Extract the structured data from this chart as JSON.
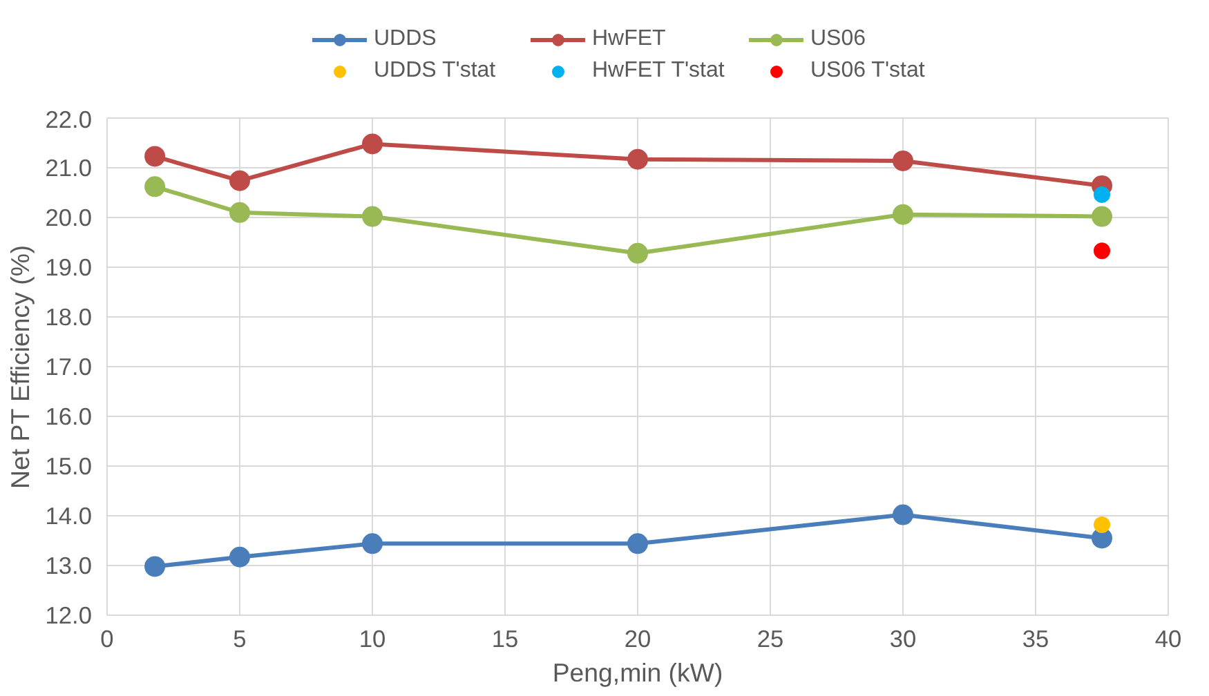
{
  "chart_data": {
    "type": "line",
    "xlabel": "Peng,min (kW)",
    "ylabel": "Net PT Efficiency (%)",
    "x": [
      1.8,
      5,
      10,
      20,
      30,
      37.5
    ],
    "series": [
      {
        "name": "UDDS",
        "color": "#4a7ebb",
        "values": [
          12.98,
          13.17,
          13.44,
          13.44,
          14.02,
          13.55
        ]
      },
      {
        "name": "HwFET",
        "color": "#be4b48",
        "values": [
          21.23,
          20.74,
          21.48,
          21.17,
          21.14,
          20.64
        ]
      },
      {
        "name": "US06",
        "color": "#98b954",
        "values": [
          20.62,
          20.1,
          20.02,
          19.28,
          20.06,
          20.02
        ]
      },
      {
        "name": "UDDS T'stat",
        "type": "scatter",
        "color": "#ffc000",
        "values": [
          null,
          null,
          null,
          null,
          null,
          13.82
        ]
      },
      {
        "name": "HwFET T'stat",
        "type": "scatter",
        "color": "#00b0f0",
        "values": [
          null,
          null,
          null,
          null,
          null,
          20.46
        ]
      },
      {
        "name": "US06 T'stat",
        "type": "scatter",
        "color": "#ff0000",
        "values": [
          null,
          null,
          null,
          null,
          null,
          19.33
        ]
      }
    ],
    "xlim": [
      0,
      40
    ],
    "xticks": [
      0,
      5,
      10,
      15,
      20,
      25,
      30,
      35,
      40
    ],
    "ylim": [
      12,
      22
    ],
    "yticks": [
      {
        "value": 12,
        "label": "12.0"
      },
      {
        "value": 13,
        "label": "13.0"
      },
      {
        "value": 14,
        "label": "14.0"
      },
      {
        "value": 15,
        "label": "15.0"
      },
      {
        "value": 16,
        "label": "16.0"
      },
      {
        "value": 17,
        "label": "17.0"
      },
      {
        "value": 18,
        "label": "18.0"
      },
      {
        "value": 19,
        "label": "19.0"
      },
      {
        "value": 20,
        "label": "20.0"
      },
      {
        "value": 21,
        "label": "21.0"
      },
      {
        "value": 22,
        "label": "22.0"
      }
    ],
    "grid": true,
    "legend": "top",
    "marker": "circle",
    "line_style": "solid"
  }
}
